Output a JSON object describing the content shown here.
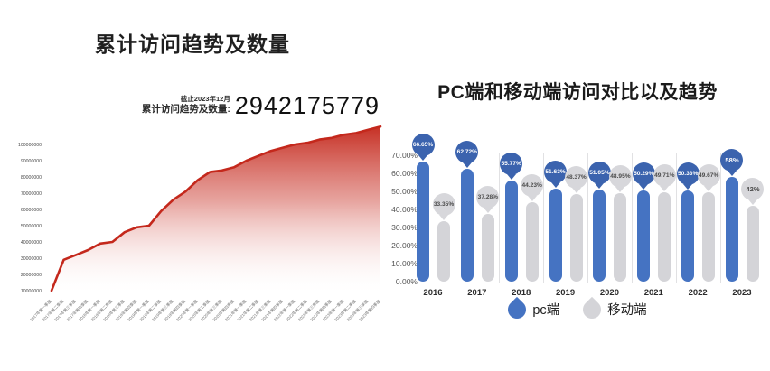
{
  "palette": {
    "red_line": "#c4281c",
    "blue_bar": "#4573C2",
    "blue_bubble": "#3B63AE",
    "gray_bar": "#D4D4D8",
    "gray_bubble": "#D7D7DB"
  },
  "left_chart": {
    "title": "累计访问趋势及数量",
    "annotation": {
      "caption_small": "截止2023年12月",
      "caption_main": "累计访问趋势及数量:",
      "value": "2942175779"
    }
  },
  "right_chart": {
    "title": "PC端和移动端访问对比以及趋势"
  },
  "chart_data": [
    {
      "type": "area",
      "title": "累计访问趋势及数量",
      "annotation_value": "2942175779",
      "annotation_caption": "截止2023年12月 累计访问趋势及数量:",
      "x": [
        "2017年第一季度",
        "2017年第二季度",
        "2017年第三季度",
        "2017年第四季度",
        "2018年第一季度",
        "2018年第二季度",
        "2018年第三季度",
        "2018年第四季度",
        "2019年第一季度",
        "2019年第二季度",
        "2019年第三季度",
        "2019年第四季度",
        "2020年第一季度",
        "2020年第二季度",
        "2020年第三季度",
        "2020年第四季度",
        "2021年第一季度",
        "2021年第二季度",
        "2021年第三季度",
        "2021年第四季度",
        "2022年第一季度",
        "2022年第二季度",
        "2022年第三季度",
        "2022年第四季度",
        "2023年第一季度",
        "2023年第二季度",
        "2023年第三季度",
        "2023年第四季度"
      ],
      "values": [
        10000000,
        29000000,
        32000000,
        35000000,
        39000000,
        40000000,
        46000000,
        49000000,
        50000000,
        59000000,
        66000000,
        71000000,
        78000000,
        83000000,
        84000000,
        86000000,
        90000000,
        93000000,
        96000000,
        98000000,
        100000000,
        101000000,
        103000000,
        104000000,
        106000000,
        107000000,
        109000000,
        111000000
      ],
      "ylabels": [
        "100000000",
        "90000000",
        "80000000",
        "70000000",
        "60000000",
        "50000000",
        "40000000",
        "30000000",
        "20000000",
        "10000000"
      ],
      "ylim": [
        0,
        115000000
      ],
      "grid": false,
      "legend_position": "none",
      "note": "values estimated from pixel trace; quarterly cumulative visits"
    },
    {
      "type": "bar",
      "title": "PC端和移动端访问对比以及趋势",
      "categories": [
        "2016",
        "2017",
        "2018",
        "2019",
        "2020",
        "2021",
        "2022",
        "2023"
      ],
      "series": [
        {
          "name": "pc端",
          "values": [
            66.65,
            62.72,
            55.77,
            51.63,
            51.05,
            50.29,
            50.33,
            58
          ],
          "labels": [
            "66.65%",
            "62.72%",
            "55.77%",
            "51.63%",
            "51.05%",
            "50.29%",
            "50.33%",
            "58%"
          ]
        },
        {
          "name": "移动端",
          "values": [
            33.35,
            37.28,
            44.23,
            48.37,
            48.95,
            49.71,
            49.67,
            42
          ],
          "labels": [
            "33.35%",
            "37.28%",
            "44.23%",
            "48.37%",
            "48.95%",
            "49.71%",
            "49.67%",
            "42%"
          ]
        }
      ],
      "ylabels": [
        "70.00%",
        "60.00%",
        "50.00%",
        "40.00%",
        "30.00%",
        "20.00%",
        "10.00%",
        "0.00%"
      ],
      "ylim": [
        0,
        70
      ],
      "grid": false,
      "legend_position": "bottom"
    }
  ]
}
